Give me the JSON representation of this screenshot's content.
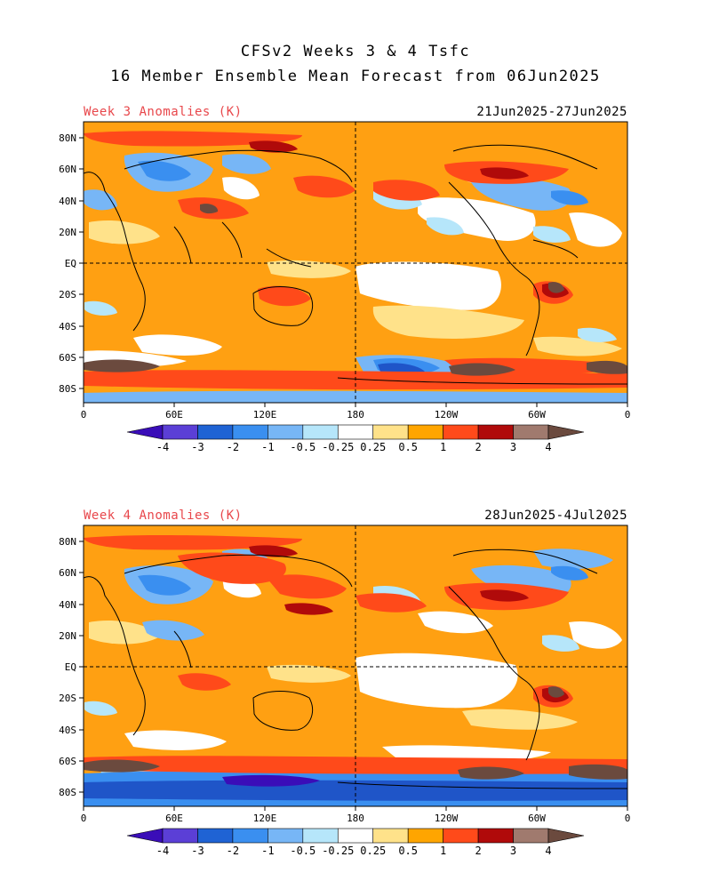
{
  "header": {
    "title_line1": "CFSv2 Weeks 3 & 4 Tsfc",
    "title_line2": "16 Member Ensemble Mean Forecast from 06Jun2025"
  },
  "panels": [
    {
      "label": "Week 3 Anomalies (K)",
      "date_range": "21Jun2025-27Jun2025",
      "lat_labels": [
        "80N",
        "60N",
        "40N",
        "20N",
        "EQ",
        "20S",
        "40S",
        "60S",
        "80S"
      ],
      "lon_labels": [
        "0",
        "60E",
        "120E",
        "180",
        "120W",
        "60W",
        "0"
      ]
    },
    {
      "label": "Week 4 Anomalies (K)",
      "date_range": "28Jun2025-4Jul2025",
      "lat_labels": [
        "80N",
        "60N",
        "40N",
        "20N",
        "EQ",
        "20S",
        "40S",
        "60S",
        "80S"
      ],
      "lon_labels": [
        "0",
        "60E",
        "120E",
        "180",
        "120W",
        "60W",
        "0"
      ]
    }
  ],
  "colorbar": {
    "labels": [
      "-4",
      "-3",
      "-2",
      "-1",
      "-0.5",
      "-0.25",
      "0.25",
      "0.5",
      "1",
      "2",
      "3",
      "4"
    ],
    "colors": [
      "#3a0db8",
      "#5b3fd6",
      "#1f63d4",
      "#3a8ff0",
      "#77b6f6",
      "#b6e6fa",
      "#ffffff",
      "#ffe28a",
      "#ffa500",
      "#ff4a1a",
      "#b00a0a",
      "#a07a6e",
      "#6b4a3e"
    ]
  },
  "palette": {
    "ocean_warm": "#ffa012",
    "weak_warm": "#ffe28a",
    "neutral": "#ffffff",
    "weak_cold": "#b6e6fa",
    "cold": "#3a8ff0",
    "strong_warm": "#ff4a1a",
    "very_warm": "#b00a0a",
    "extreme_warm": "#6b4a3e",
    "deep_cold": "#1f55c8",
    "label_red": "#e8474b"
  }
}
